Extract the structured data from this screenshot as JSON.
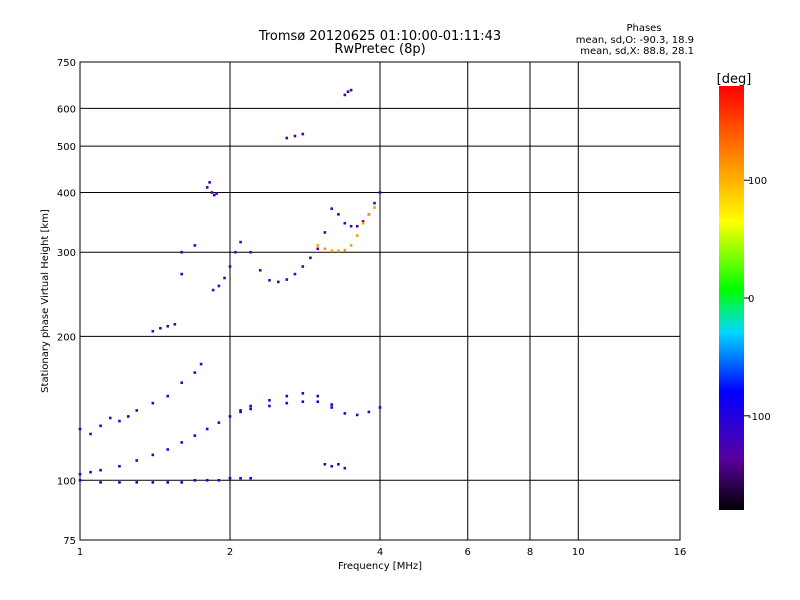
{
  "chart_data": {
    "type": "scatter",
    "title": "Tromsø 20120625 01:10:00-01:11:43",
    "subtitle": "RwPretec (8p)",
    "xlabel": "Frequency [MHz]",
    "ylabel": "Stationary phase Virtual Height [km]",
    "x_scale": "log",
    "y_scale": "log",
    "xlim": [
      1,
      16
    ],
    "ylim": [
      75,
      750
    ],
    "x_ticks": [
      1,
      2,
      4,
      6,
      8,
      10,
      16
    ],
    "x_tick_labels": [
      "1",
      "2",
      "4",
      "6",
      "8",
      "10",
      "16"
    ],
    "y_ticks": [
      75,
      100,
      200,
      300,
      400,
      500,
      600,
      750
    ],
    "y_tick_labels": [
      "75",
      "100",
      "200",
      "300",
      "400",
      "500",
      "600",
      "750"
    ],
    "grid": true,
    "annotations": {
      "heading": "Phases",
      "line_o": "mean, sd,O: -90.3, 18.9",
      "line_x": "mean, sd,X:  88.8, 28.1"
    },
    "colorbar": {
      "label": "[deg]",
      "range": [
        -180,
        180
      ],
      "ticks": [
        100,
        0,
        -100
      ],
      "tick_labels": [
        "100",
        "0",
        "-100"
      ]
    },
    "traces": [
      {
        "phase": -100,
        "points": [
          [
            1.0,
            103
          ],
          [
            1.05,
            104
          ],
          [
            1.1,
            105
          ],
          [
            1.2,
            107
          ],
          [
            1.3,
            110
          ],
          [
            1.4,
            113
          ],
          [
            1.5,
            116
          ],
          [
            1.6,
            120
          ],
          [
            1.7,
            124
          ],
          [
            1.8,
            128
          ],
          [
            1.9,
            132
          ],
          [
            2.0,
            136
          ],
          [
            2.1,
            139
          ],
          [
            2.2,
            141
          ],
          [
            2.4,
            143
          ],
          [
            2.6,
            145
          ],
          [
            2.8,
            146
          ],
          [
            3.0,
            146
          ],
          [
            3.2,
            144
          ]
        ]
      },
      {
        "phase": -95,
        "points": [
          [
            1.0,
            100
          ],
          [
            1.1,
            99
          ],
          [
            1.2,
            99
          ],
          [
            1.3,
            99
          ],
          [
            1.4,
            99
          ],
          [
            1.5,
            99
          ],
          [
            1.6,
            99
          ],
          [
            1.7,
            100
          ],
          [
            1.8,
            100
          ],
          [
            1.9,
            100
          ],
          [
            2.0,
            101
          ],
          [
            2.1,
            101
          ],
          [
            2.2,
            101
          ]
        ]
      },
      {
        "phase": -110,
        "points": [
          [
            1.0,
            128
          ],
          [
            1.05,
            125
          ],
          [
            1.1,
            130
          ],
          [
            1.15,
            135
          ],
          [
            1.2,
            133
          ],
          [
            1.25,
            136
          ],
          [
            1.3,
            140
          ],
          [
            1.4,
            145
          ],
          [
            1.5,
            150
          ],
          [
            1.6,
            160
          ],
          [
            1.7,
            168
          ],
          [
            1.75,
            175
          ]
        ]
      },
      {
        "phase": -105,
        "points": [
          [
            2.1,
            140
          ],
          [
            2.2,
            143
          ],
          [
            2.4,
            147
          ],
          [
            2.6,
            150
          ],
          [
            2.8,
            152
          ],
          [
            3.0,
            150
          ],
          [
            3.2,
            142
          ],
          [
            3.4,
            138
          ],
          [
            3.6,
            137
          ],
          [
            3.8,
            139
          ],
          [
            4.0,
            142
          ]
        ]
      },
      {
        "phase": -120,
        "points": [
          [
            1.85,
            250
          ],
          [
            1.9,
            255
          ],
          [
            1.95,
            265
          ],
          [
            2.0,
            280
          ],
          [
            2.05,
            300
          ],
          [
            2.1,
            315
          ],
          [
            2.2,
            300
          ],
          [
            2.3,
            275
          ],
          [
            2.4,
            262
          ],
          [
            2.5,
            260
          ],
          [
            2.6,
            263
          ],
          [
            2.7,
            270
          ],
          [
            2.8,
            280
          ],
          [
            2.9,
            292
          ],
          [
            3.0,
            305
          ],
          [
            3.1,
            330
          ],
          [
            3.2,
            370
          ],
          [
            3.3,
            360
          ],
          [
            3.4,
            345
          ],
          [
            3.5,
            340
          ],
          [
            3.6,
            340
          ],
          [
            3.7,
            348
          ],
          [
            3.8,
            360
          ],
          [
            3.9,
            380
          ],
          [
            4.0,
            400
          ]
        ]
      },
      {
        "phase": 110,
        "points": [
          [
            3.0,
            310
          ],
          [
            3.1,
            305
          ],
          [
            3.2,
            302
          ],
          [
            3.3,
            302
          ],
          [
            3.4,
            303
          ],
          [
            3.5,
            310
          ],
          [
            3.6,
            325
          ],
          [
            3.7,
            345
          ],
          [
            3.8,
            360
          ],
          [
            3.9,
            372
          ]
        ]
      },
      {
        "phase": -120,
        "points": [
          [
            1.4,
            205
          ],
          [
            1.45,
            208
          ],
          [
            1.5,
            210
          ],
          [
            1.55,
            212
          ]
        ]
      },
      {
        "phase": -120,
        "points": [
          [
            1.8,
            410
          ],
          [
            1.82,
            420
          ],
          [
            1.84,
            400
          ],
          [
            1.86,
            395
          ],
          [
            1.88,
            398
          ]
        ]
      },
      {
        "phase": -120,
        "points": [
          [
            2.6,
            520
          ],
          [
            2.7,
            525
          ],
          [
            2.8,
            530
          ]
        ]
      },
      {
        "phase": -120,
        "points": [
          [
            3.4,
            640
          ],
          [
            3.45,
            650
          ],
          [
            3.5,
            655
          ]
        ]
      },
      {
        "phase": -115,
        "points": [
          [
            3.1,
            108
          ],
          [
            3.2,
            107
          ],
          [
            3.3,
            108
          ],
          [
            3.4,
            106
          ]
        ]
      },
      {
        "phase": -100,
        "points": [
          [
            1.6,
            300
          ],
          [
            1.7,
            310
          ],
          [
            1.6,
            270
          ]
        ]
      }
    ]
  }
}
